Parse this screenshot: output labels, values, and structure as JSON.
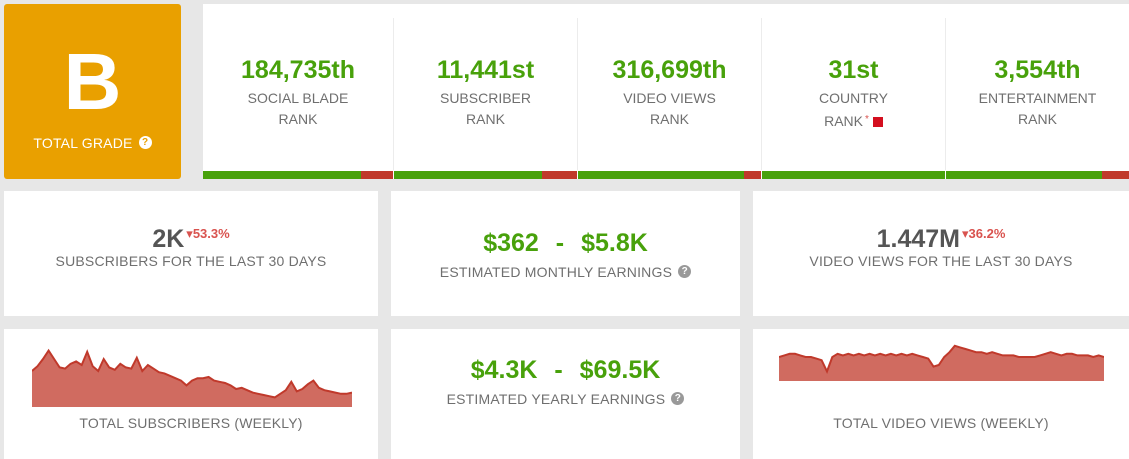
{
  "grade": {
    "letter": "B",
    "label": "TOTAL GRADE",
    "help_icon": "?",
    "color": "#e9a000"
  },
  "ranks": [
    {
      "value": "184,735th",
      "line1": "SOCIAL BLADE",
      "line2": "RANK",
      "fill": 0.82
    },
    {
      "value": "11,441st",
      "line1": "SUBSCRIBER",
      "line2": "RANK",
      "fill": 0.81
    },
    {
      "value": "316,699th",
      "line1": "VIDEO VIEWS",
      "line2": "RANK",
      "fill": 0.9
    },
    {
      "value": "31st",
      "line1": "COUNTRY",
      "line2": "RANK",
      "asterisk": "*",
      "flag": "red-square-flag",
      "fill": 1.0
    },
    {
      "value": "3,554th",
      "line1": "ENTERTAINMENT",
      "line2": "RANK",
      "fill": 0.85
    }
  ],
  "stats": {
    "subs30": {
      "value": "2K",
      "change": "53.3%",
      "label": "SUBSCRIBERS FOR THE LAST 30 DAYS"
    },
    "monthly": {
      "low": "$362",
      "sep": "-",
      "high": "$5.8K",
      "label": "ESTIMATED MONTHLY EARNINGS",
      "help_icon": "?"
    },
    "views30": {
      "value": "1.447M",
      "change": "36.2%",
      "label": "VIDEO VIEWS FOR THE LAST 30 DAYS"
    },
    "yearly": {
      "low": "$4.3K",
      "sep": "-",
      "high": "$69.5K",
      "label": "ESTIMATED YEARLY EARNINGS",
      "help_icon": "?"
    }
  },
  "charts": {
    "subs_weekly": {
      "label": "TOTAL SUBSCRIBERS (WEEKLY)",
      "color": "#c0392b",
      "values": [
        30,
        34,
        40,
        47,
        40,
        33,
        32,
        36,
        38,
        35,
        46,
        34,
        30,
        40,
        33,
        31,
        36,
        33,
        32,
        41,
        30,
        35,
        32,
        29,
        28,
        26,
        24,
        22,
        18,
        22,
        24,
        24,
        25,
        22,
        21,
        20,
        18,
        15,
        16,
        14,
        12,
        11,
        10,
        9,
        8,
        11,
        14,
        21,
        13,
        15,
        19,
        22,
        16,
        14,
        13,
        12,
        11,
        11,
        12
      ]
    },
    "views_weekly": {
      "label": "TOTAL VIDEO VIEWS (WEEKLY)",
      "color": "#c0392b",
      "values": [
        15,
        16,
        17,
        17,
        16,
        15,
        15,
        14,
        13,
        6,
        15,
        17,
        16,
        17,
        16,
        17,
        16,
        17,
        16,
        17,
        16,
        17,
        16,
        17,
        16,
        17,
        16,
        15,
        14,
        9,
        10,
        15,
        18,
        22,
        21,
        20,
        19,
        18,
        18,
        17,
        18,
        17,
        16,
        16,
        16,
        15,
        15,
        15,
        15,
        16,
        17,
        18,
        17,
        16,
        17,
        17,
        16,
        16,
        16,
        15,
        16,
        15
      ]
    }
  }
}
